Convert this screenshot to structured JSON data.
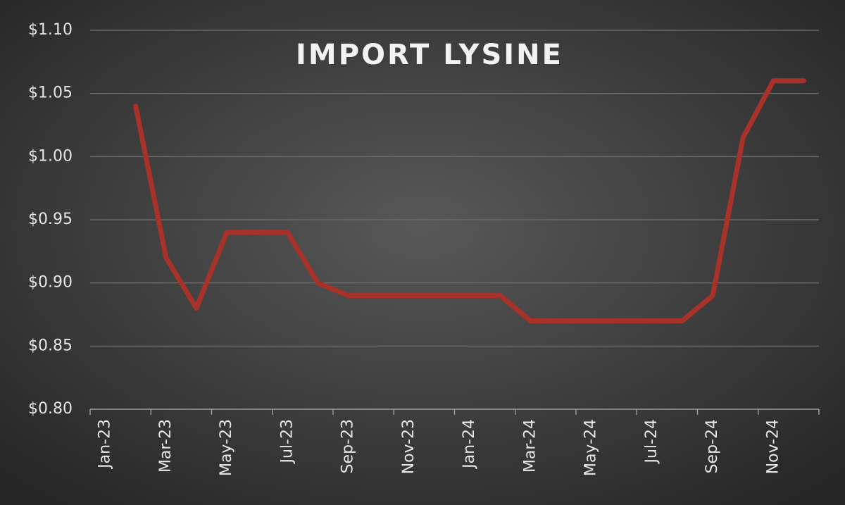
{
  "chart_data": {
    "type": "line",
    "title": "IMPORT LYSINE",
    "categories": [
      "Jan-23",
      null,
      "Mar-23",
      null,
      "May-23",
      null,
      "Jul-23",
      null,
      "Sep-23",
      null,
      "Nov-23",
      null,
      "Jan-24",
      null,
      "Mar-24",
      null,
      "May-24",
      null,
      "Jul-24",
      null,
      "Sep-24",
      null,
      "Nov-24",
      null
    ],
    "values": [
      null,
      1.04,
      0.92,
      0.88,
      0.94,
      0.94,
      0.94,
      0.9,
      0.89,
      0.89,
      0.89,
      0.89,
      0.89,
      0.89,
      0.87,
      0.87,
      0.87,
      0.87,
      0.87,
      0.87,
      0.89,
      1.015,
      1.06,
      1.06
    ],
    "color": "#a8322a",
    "ylim": [
      0.8,
      1.1
    ],
    "yticks": [
      {
        "value": 0.8,
        "label": "$0.80"
      },
      {
        "value": 0.85,
        "label": "$0.85"
      },
      {
        "value": 0.9,
        "label": "$0.90"
      },
      {
        "value": 0.95,
        "label": "$0.95"
      },
      {
        "value": 1.0,
        "label": "$1.00"
      },
      {
        "value": 1.05,
        "label": "$1.05"
      },
      {
        "value": 1.1,
        "label": "$1.10"
      }
    ],
    "grid": true
  }
}
